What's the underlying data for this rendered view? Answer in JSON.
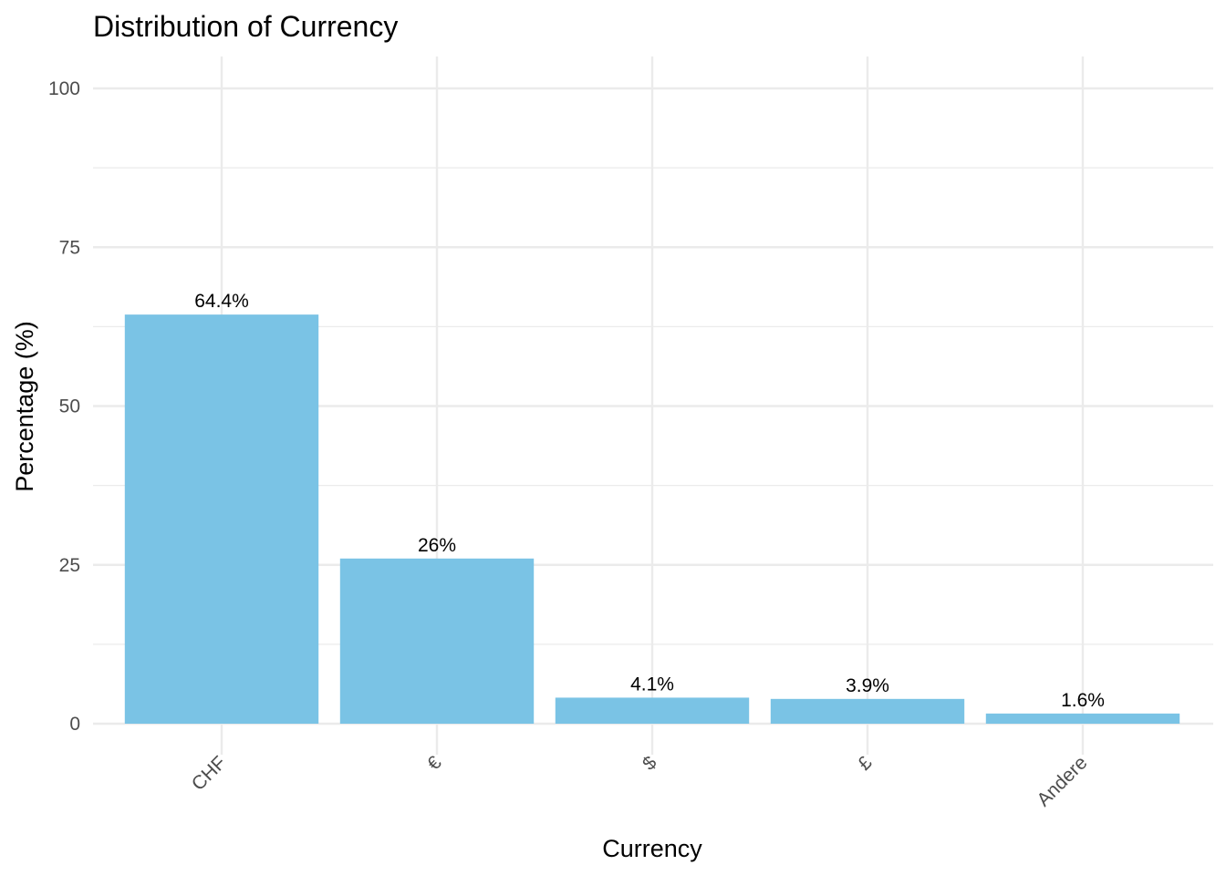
{
  "chart_data": {
    "type": "bar",
    "title": "Distribution of Currency",
    "xlabel": "Currency",
    "ylabel": "Percentage (%)",
    "categories": [
      "CHF",
      "€",
      "$",
      "£",
      "Andere"
    ],
    "values": [
      64.4,
      26,
      4.1,
      3.9,
      1.6
    ],
    "data_labels": [
      "64.4%",
      "26%",
      "4.1%",
      "3.9%",
      "1.6%"
    ],
    "ylim": [
      0,
      100
    ],
    "y_ticks": [
      0,
      25,
      50,
      75,
      100
    ],
    "y_tick_labels": [
      "0",
      "25",
      "50",
      "75",
      "100"
    ],
    "grid": true,
    "legend": "none",
    "bar_color": "#7AC3E5",
    "grid_color": "#EBEBEB"
  }
}
